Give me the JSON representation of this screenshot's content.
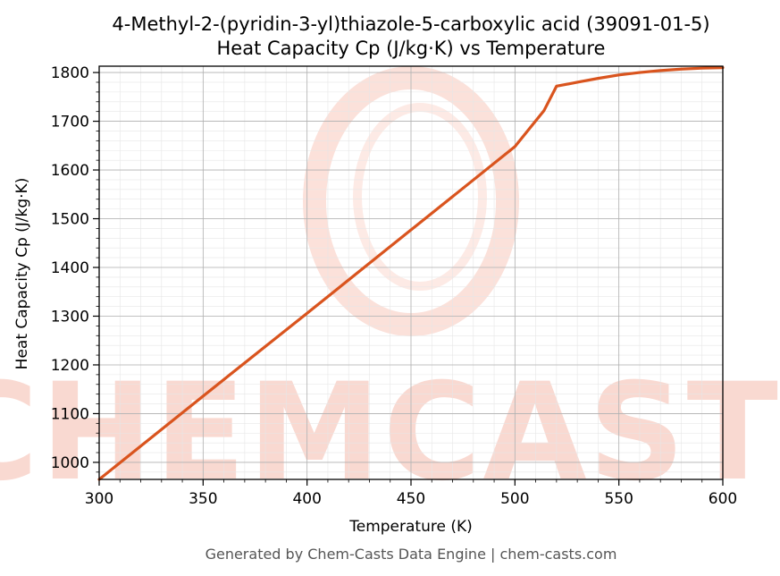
{
  "chart_data": {
    "type": "line",
    "title": "4-Methyl-2-(pyridin-3-yl)thiazole-5-carboxylic acid (39091-01-5)",
    "subtitle": "Heat Capacity Cp (J/kg·K) vs Temperature",
    "xlabel": "Temperature (K)",
    "ylabel": "Heat Capacity Cp (J/kg·K)",
    "xlim": [
      300,
      600
    ],
    "ylim": [
      965,
      1813
    ],
    "xticks": [
      300,
      350,
      400,
      450,
      500,
      550,
      600
    ],
    "yticks": [
      1000,
      1100,
      1200,
      1300,
      1400,
      1500,
      1600,
      1700,
      1800
    ],
    "grid": true,
    "series": [
      {
        "color": "#d9541e",
        "x": [
          300,
          350,
          400,
          450,
          500,
          514,
          520,
          530,
          540,
          550,
          560,
          570,
          580,
          590,
          600
        ],
        "y": [
          965,
          1136,
          1306,
          1477,
          1648,
          1722,
          1772,
          1780,
          1788,
          1795,
          1800,
          1804,
          1807,
          1809,
          1810
        ]
      }
    ]
  },
  "watermark": "CHEMCASTS",
  "footer": "Generated by Chem-Casts Data Engine | chem-casts.com"
}
